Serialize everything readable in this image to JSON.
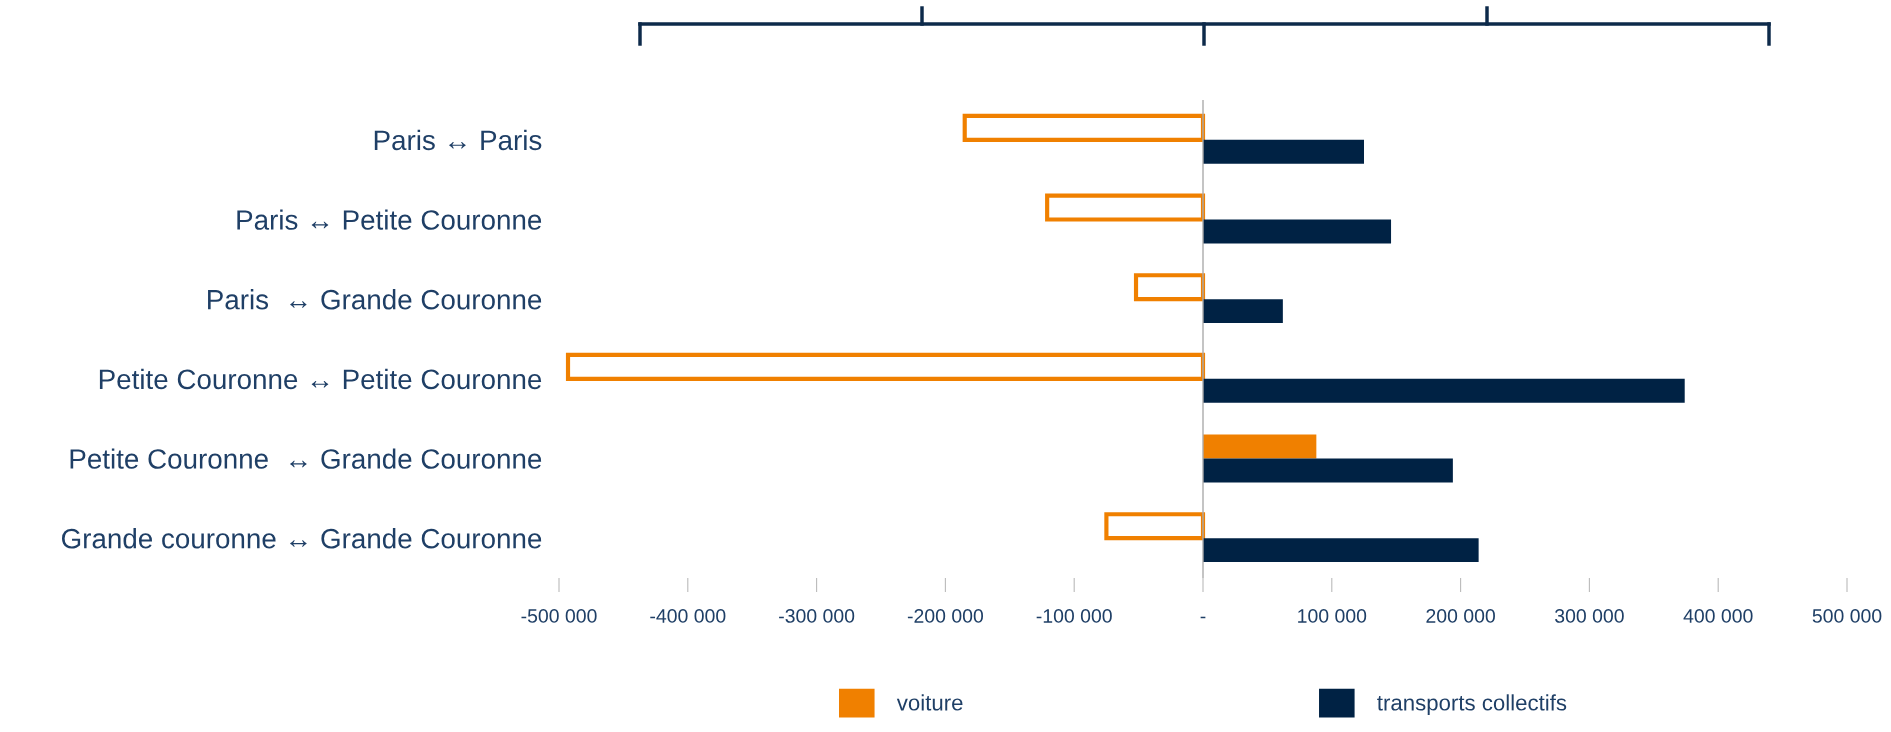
{
  "chart_data": {
    "type": "bar",
    "orientation": "horizontal",
    "categories": [
      "Paris ↔ Paris",
      "Paris ↔ Petite Couronne",
      "Paris  ↔ Grande Couronne",
      "Petite Couronne ↔ Petite Couronne",
      "Petite Couronne  ↔ Grande Couronne",
      "Grande couronne ↔ Grande Couronne"
    ],
    "series": [
      {
        "name": "voiture",
        "color": "#f08000",
        "values": [
          -185000,
          -121000,
          -52000,
          -493000,
          88000,
          -75000
        ]
      },
      {
        "name": "transports collectifs",
        "color": "#002244",
        "values": [
          125000,
          146000,
          62000,
          374000,
          194000,
          214000
        ]
      }
    ],
    "xlim": [
      -500000,
      500000
    ],
    "xticks": [
      {
        "value": -500000,
        "label": "-500 000"
      },
      {
        "value": -400000,
        "label": "-400 000"
      },
      {
        "value": -300000,
        "label": "-300 000"
      },
      {
        "value": -200000,
        "label": "-200 000"
      },
      {
        "value": -100000,
        "label": "-100 000"
      },
      {
        "value": 0,
        "label": "-"
      },
      {
        "value": 100000,
        "label": "100 000"
      },
      {
        "value": 200000,
        "label": "200 000"
      },
      {
        "value": 300000,
        "label": "300 000"
      },
      {
        "value": 400000,
        "label": "400 000"
      },
      {
        "value": 500000,
        "label": "500 000"
      }
    ],
    "ref_lines": [
      {
        "axis": "x",
        "value": 0,
        "color": "#aaaaaa"
      }
    ],
    "grid": false,
    "legend": "bottom"
  }
}
